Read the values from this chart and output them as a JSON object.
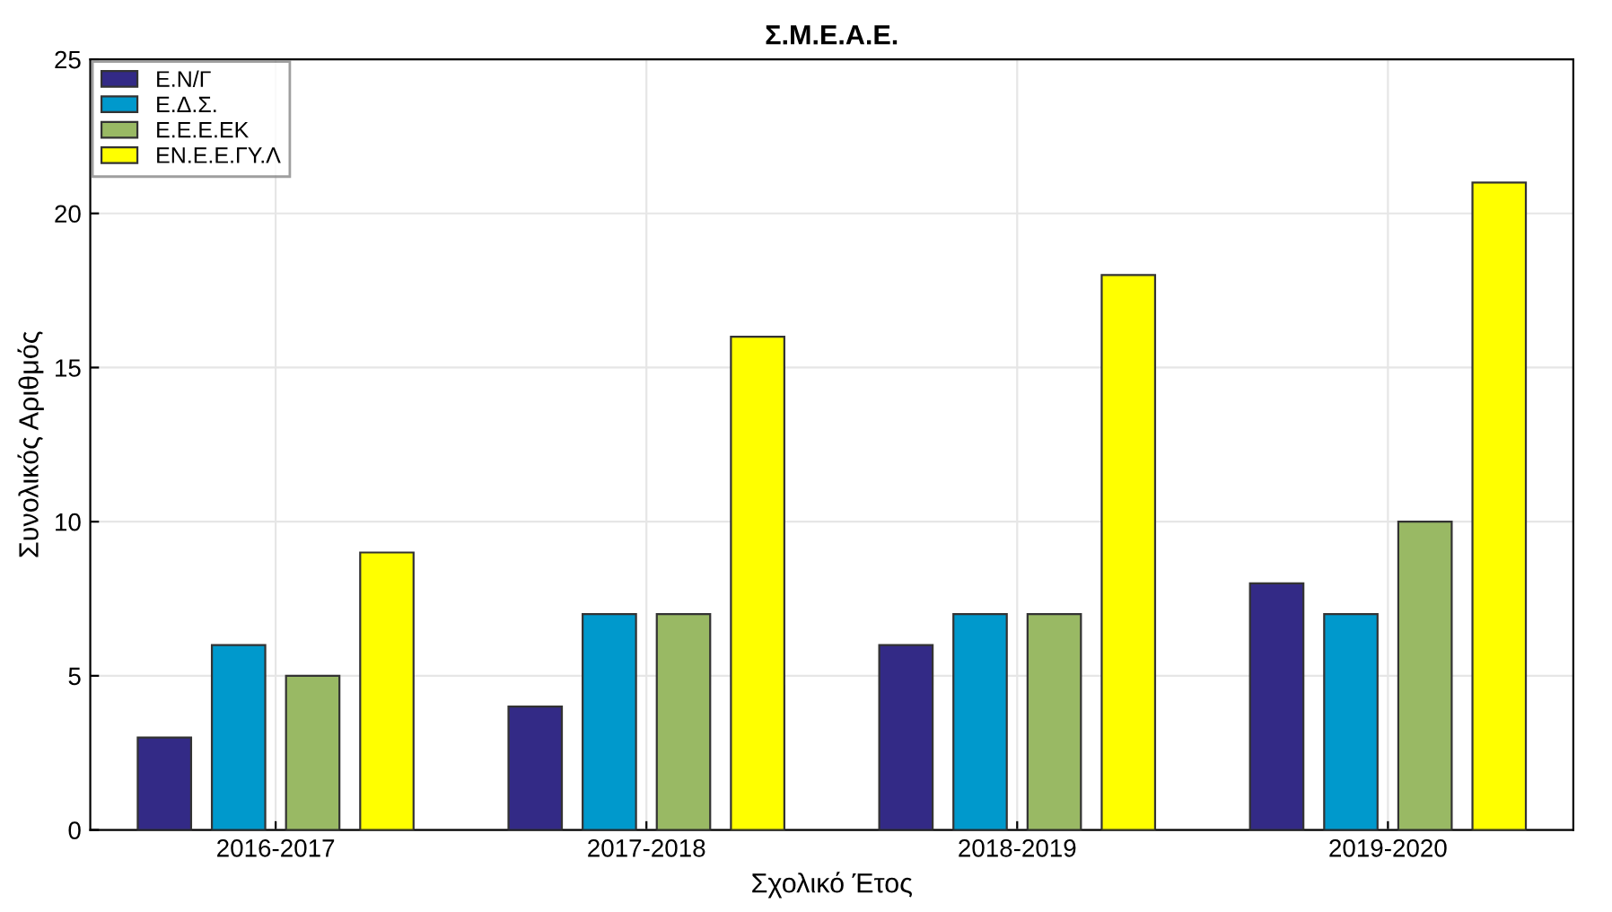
{
  "chart_data": {
    "type": "bar",
    "title": "Σ.Μ.Ε.Α.Ε.",
    "xlabel": "Σχολικό Έτος",
    "ylabel": "Συνολικός Αριθμός",
    "categories": [
      "2016-2017",
      "2017-2018",
      "2018-2019",
      "2019-2020"
    ],
    "series": [
      {
        "name": "Ε.Ν/Γ",
        "color": "#332a86",
        "values": [
          3,
          4,
          6,
          8
        ]
      },
      {
        "name": "Ε.Δ.Σ.",
        "color": "#0099cc",
        "values": [
          6,
          7,
          7,
          7
        ]
      },
      {
        "name": "Ε.Ε.Ε.ΕΚ",
        "color": "#99b964",
        "values": [
          5,
          7,
          7,
          10
        ]
      },
      {
        "name": "ΕΝ.Ε.Ε.ΓΥ.Λ",
        "color": "#ffff00",
        "values": [
          9,
          16,
          18,
          21
        ]
      }
    ],
    "ylim": [
      0,
      25
    ],
    "yticks": [
      0,
      5,
      10,
      15,
      20,
      25
    ],
    "grid": true,
    "legend": "top left"
  }
}
